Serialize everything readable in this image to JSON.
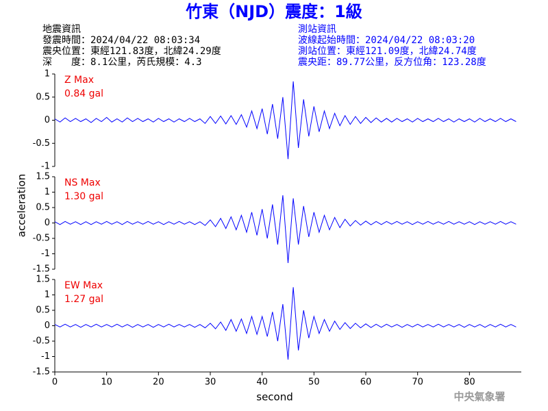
{
  "header": {
    "title": "竹東（NJD）震度：1級",
    "left": [
      "地震資訊",
      "發震時間：2024/04/22 08:03:34",
      "震央位置：東經121.83度，北緯24.29度",
      "深　　度：8.1公里，芮氏規模：4.3"
    ],
    "right": [
      "測站資訊",
      "波線起始時間：2024/04/22 08:03:20",
      "測站位置：東經121.09度，北緯24.74度",
      "震央距：89.77公里，反方位角：123.28度"
    ]
  },
  "chart_data": {
    "type": "line",
    "xlabel": "second",
    "ylabel": "acceleration",
    "xlim": [
      0,
      90
    ],
    "xticks": [
      0,
      10,
      20,
      30,
      40,
      50,
      60,
      70,
      80
    ],
    "x": [
      0,
      1,
      2,
      3,
      4,
      5,
      6,
      7,
      8,
      9,
      10,
      11,
      12,
      13,
      14,
      15,
      16,
      17,
      18,
      19,
      20,
      21,
      22,
      23,
      24,
      25,
      26,
      27,
      28,
      29,
      30,
      31,
      32,
      33,
      34,
      35,
      36,
      37,
      38,
      39,
      40,
      41,
      42,
      43,
      44,
      45,
      46,
      47,
      48,
      49,
      50,
      51,
      52,
      53,
      54,
      55,
      56,
      57,
      58,
      59,
      60,
      61,
      62,
      63,
      64,
      65,
      66,
      67,
      68,
      69,
      70,
      71,
      72,
      73,
      74,
      75,
      76,
      77,
      78,
      79,
      80,
      81,
      82,
      83,
      84,
      85,
      86,
      87,
      88,
      89
    ],
    "series": [
      {
        "name": "Z Max",
        "annotation": "0.84 gal",
        "color": "#0000ff",
        "ylim": [
          -1,
          1
        ],
        "yticks": [
          -1,
          -0.5,
          0,
          0.5,
          1
        ],
        "values": [
          0.03,
          -0.04,
          0.05,
          -0.03,
          0.04,
          -0.03,
          0.03,
          -0.05,
          0.04,
          -0.03,
          0.06,
          -0.04,
          0.03,
          -0.04,
          0.05,
          -0.03,
          0.04,
          -0.03,
          0.03,
          -0.04,
          0.04,
          -0.03,
          0.03,
          -0.04,
          0.03,
          -0.03,
          0.04,
          -0.03,
          0.03,
          -0.07,
          0.08,
          -0.07,
          0.09,
          -0.08,
          0.1,
          -0.09,
          0.12,
          -0.15,
          0.2,
          -0.18,
          0.25,
          -0.3,
          0.35,
          -0.4,
          0.5,
          -0.84,
          0.84,
          -0.6,
          0.45,
          -0.35,
          0.3,
          -0.25,
          0.2,
          -0.18,
          0.15,
          -0.12,
          0.1,
          -0.09,
          0.08,
          -0.07,
          0.06,
          -0.05,
          0.05,
          -0.04,
          0.04,
          -0.04,
          0.04,
          -0.03,
          0.03,
          -0.04,
          0.04,
          -0.03,
          0.03,
          -0.03,
          0.04,
          -0.03,
          0.03,
          -0.04,
          0.03,
          -0.03,
          0.03,
          -0.04,
          0.04,
          -0.03,
          0.03,
          -0.03,
          0.04,
          -0.03,
          0.03,
          -0.03
        ]
      },
      {
        "name": "NS Max",
        "annotation": "1.30 gal",
        "color": "#0000ff",
        "ylim": [
          -1.5,
          1.5
        ],
        "yticks": [
          -1.5,
          -1,
          -0.5,
          0,
          0.5,
          1,
          1.5
        ],
        "values": [
          0.04,
          -0.05,
          0.05,
          -0.04,
          0.04,
          -0.05,
          0.04,
          -0.05,
          0.04,
          -0.04,
          0.05,
          -0.04,
          0.04,
          -0.05,
          0.05,
          -0.04,
          0.04,
          -0.04,
          0.05,
          -0.04,
          0.04,
          -0.05,
          0.04,
          -0.04,
          0.05,
          -0.04,
          0.04,
          -0.05,
          0.04,
          -0.08,
          0.1,
          -0.12,
          0.15,
          -0.18,
          0.2,
          -0.22,
          0.25,
          -0.3,
          0.35,
          -0.4,
          0.45,
          -0.5,
          0.6,
          -0.7,
          0.9,
          -1.3,
          0.8,
          -0.7,
          0.55,
          -0.45,
          0.35,
          -0.3,
          0.25,
          -0.22,
          0.18,
          -0.15,
          0.12,
          -0.1,
          0.08,
          -0.07,
          0.06,
          -0.06,
          0.05,
          -0.05,
          0.05,
          -0.04,
          0.05,
          -0.04,
          0.04,
          -0.05,
          0.04,
          -0.04,
          0.05,
          -0.04,
          0.04,
          -0.04,
          0.05,
          -0.04,
          0.04,
          -0.04,
          0.04,
          -0.05,
          0.04,
          -0.04,
          0.04,
          -0.04,
          0.05,
          -0.04,
          0.04,
          -0.04
        ]
      },
      {
        "name": "EW Max",
        "annotation": "1.27 gal",
        "color": "#0000ff",
        "ylim": [
          -1.5,
          1.5
        ],
        "yticks": [
          -1.5,
          -1,
          -0.5,
          0,
          0.5,
          1,
          1.5
        ],
        "values": [
          0.04,
          -0.04,
          0.05,
          -0.04,
          0.04,
          -0.05,
          0.04,
          -0.04,
          0.05,
          -0.04,
          0.04,
          -0.04,
          0.05,
          -0.04,
          0.04,
          -0.05,
          0.04,
          -0.04,
          0.04,
          -0.05,
          0.04,
          -0.04,
          0.05,
          -0.04,
          0.04,
          -0.04,
          0.04,
          -0.05,
          0.04,
          -0.07,
          0.08,
          -0.1,
          0.12,
          -0.15,
          0.2,
          -0.18,
          0.22,
          -0.25,
          0.3,
          -0.28,
          0.3,
          -0.35,
          0.45,
          -0.5,
          0.7,
          -1.1,
          1.25,
          -0.8,
          0.5,
          -0.4,
          0.3,
          -0.25,
          0.2,
          -0.18,
          0.15,
          -0.12,
          0.1,
          -0.09,
          0.08,
          -0.07,
          0.06,
          -0.06,
          0.05,
          -0.05,
          0.05,
          -0.04,
          0.04,
          -0.05,
          0.04,
          -0.04,
          0.05,
          -0.04,
          0.04,
          -0.04,
          0.05,
          -0.04,
          0.04,
          -0.04,
          0.04,
          -0.05,
          0.04,
          -0.04,
          0.04,
          -0.05,
          0.04,
          -0.04,
          0.05,
          -0.04,
          0.04,
          -0.04
        ]
      }
    ]
  },
  "footer": "中央氣象署"
}
